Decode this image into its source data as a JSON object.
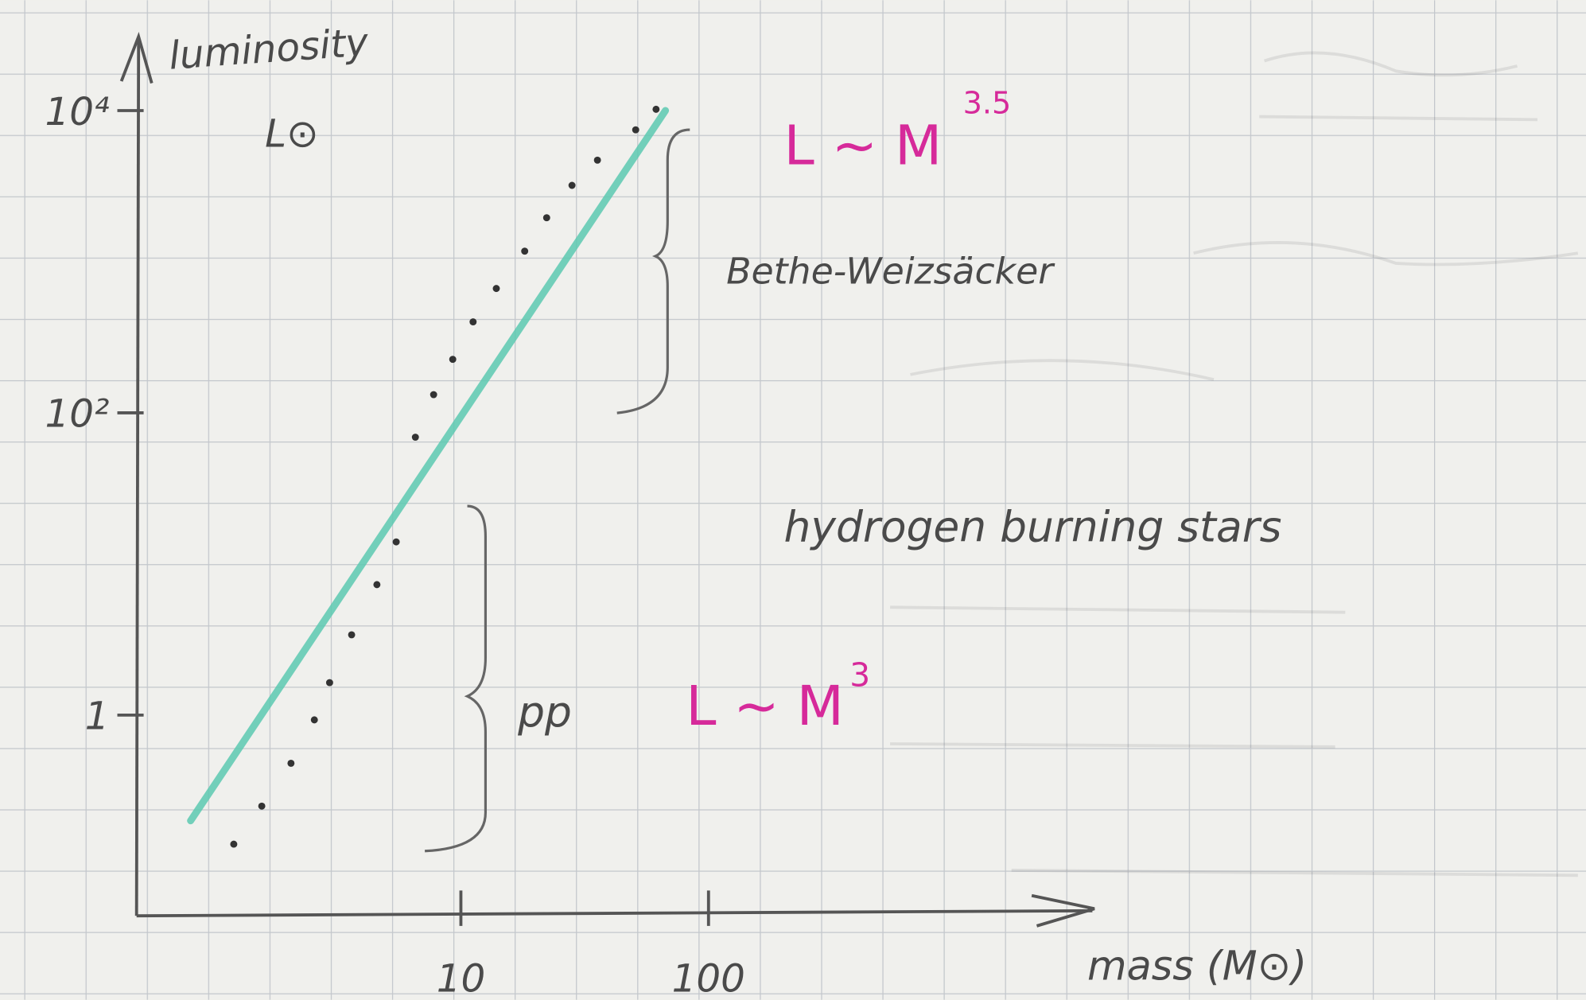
{
  "chart_data": {
    "type": "scatter",
    "y_label": "luminosity",
    "y_unit": "L⊙",
    "x_label": "mass (M⊙)",
    "xscale": "log",
    "yscale": "log",
    "xlim": [
      0.49,
      3550
    ],
    "ylim": [
      0.047,
      29000
    ],
    "xticks": [
      10,
      100
    ],
    "yticks": [
      1,
      {
        "value": 100,
        "label": "10²"
      },
      {
        "value": 10000,
        "label": "10⁴"
      }
    ],
    "series": [
      {
        "type": "scatter",
        "color": "#333333",
        "x": [
          1.21,
          1.57,
          2.06,
          2.56,
          2.95,
          3.62,
          4.58,
          5.48,
          6.55,
          7.76,
          9.27,
          11.2,
          13.9,
          18.1,
          22.2,
          28.1,
          35.6,
          50.8,
          61.4
        ],
        "values": [
          0.14,
          0.25,
          0.48,
          0.93,
          1.64,
          3.4,
          7.3,
          14,
          69,
          132,
          226,
          400,
          665,
          1175,
          1954,
          3200,
          4700,
          7460,
          10200
        ]
      },
      {
        "type": "line",
        "color": "#5cc9b0",
        "x": [
          0.81,
          67
        ],
        "values": [
          0.2,
          10000
        ]
      }
    ],
    "annotations": {
      "upper_law": "L ~ M",
      "upper_exponent": "3.5",
      "upper_process": "Bethe-Weizsäcker",
      "middle_note": "hydrogen burning stars",
      "lower_process": "pp",
      "lower_law": "L ~ M",
      "lower_exponent": "3"
    }
  }
}
